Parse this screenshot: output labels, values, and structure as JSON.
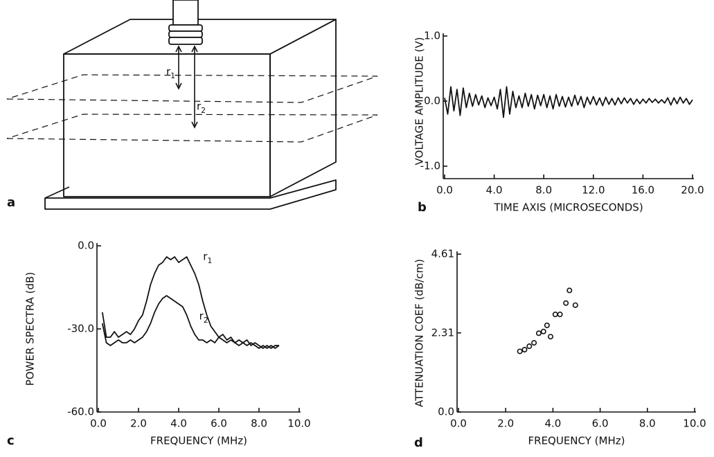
{
  "diagram": {
    "panel_label": "a",
    "arrow_labels": [
      "r1",
      "r2"
    ]
  },
  "chart_data": [
    {
      "type": "line",
      "panel_label": "b",
      "y_label": "VOLTAGE AMPLITUDE (V)",
      "x_label": "TIME AXIS (MICROSECONDS)",
      "color": "#111111",
      "x": [
        0,
        0.25,
        0.5,
        0.75,
        1,
        1.25,
        1.5,
        1.75,
        2,
        2.25,
        2.5,
        2.75,
        3,
        3.25,
        3.5,
        3.75,
        4,
        4.25,
        4.5,
        4.75,
        5,
        5.25,
        5.5,
        5.75,
        6,
        6.25,
        6.5,
        6.75,
        7,
        7.25,
        7.5,
        7.75,
        8,
        8.25,
        8.5,
        8.75,
        9,
        9.25,
        9.5,
        9.75,
        10,
        10.25,
        10.5,
        10.75,
        11,
        11.25,
        11.5,
        11.75,
        12,
        12.25,
        12.5,
        12.75,
        13,
        13.25,
        13.5,
        13.75,
        14,
        14.25,
        14.5,
        14.75,
        15,
        15.25,
        15.5,
        15.75,
        16,
        16.25,
        16.5,
        16.75,
        17,
        17.25,
        17.5,
        17.75,
        18,
        18.25,
        18.5,
        18.75,
        19,
        19.25,
        19.5,
        19.75,
        20
      ],
      "values": [
        0.05,
        -0.2,
        0.22,
        -0.15,
        0.18,
        -0.22,
        0.2,
        -0.1,
        0.12,
        -0.08,
        0.1,
        -0.06,
        0.08,
        -0.1,
        0.05,
        -0.07,
        0.06,
        -0.12,
        0.18,
        -0.25,
        0.22,
        -0.2,
        0.15,
        -0.1,
        0.08,
        -0.1,
        0.12,
        -0.08,
        0.1,
        -0.12,
        0.09,
        -0.07,
        0.1,
        -0.1,
        0.08,
        -0.12,
        0.1,
        -0.08,
        0.07,
        -0.09,
        0.06,
        -0.08,
        0.09,
        -0.06,
        0.07,
        -0.1,
        0.06,
        -0.05,
        0.07,
        -0.06,
        0.05,
        -0.07,
        0.06,
        -0.05,
        0.04,
        -0.06,
        0.05,
        -0.04,
        0.05,
        -0.03,
        0.04,
        -0.05,
        0.03,
        -0.04,
        0.03,
        -0.03,
        0.04,
        -0.02,
        0.03,
        -0.03,
        0.02,
        -0.03,
        0.05,
        -0.06,
        0.05,
        -0.04,
        0.06,
        -0.03,
        0.04,
        -0.05,
        0.02
      ],
      "xlim": [
        0,
        20
      ],
      "ylim": [
        -1,
        1
      ],
      "xticks": [
        {
          "value": 0,
          "label": "0.0"
        },
        {
          "value": 4,
          "label": "4.0"
        },
        {
          "value": 8,
          "label": "8.0"
        },
        {
          "value": 12,
          "label": "12.0"
        },
        {
          "value": 16,
          "label": "16.0"
        },
        {
          "value": 20,
          "label": "20.0"
        }
      ],
      "yticks": [
        {
          "value": -1,
          "label": "-1.0"
        },
        {
          "value": 0,
          "label": "0.0"
        },
        {
          "value": 1,
          "label": "1.0"
        }
      ]
    },
    {
      "type": "line",
      "panel_label": "c",
      "y_label": "POWER SPECTRA (dB)",
      "x_label": "FREQUENCY (MHz)",
      "x": [
        0.2,
        0.4,
        0.6,
        0.8,
        1.0,
        1.2,
        1.4,
        1.6,
        1.8,
        2.0,
        2.2,
        2.4,
        2.6,
        2.8,
        3.0,
        3.2,
        3.4,
        3.6,
        3.8,
        4.0,
        4.2,
        4.4,
        4.6,
        4.8,
        5.0,
        5.2,
        5.4,
        5.6,
        5.8,
        6.0,
        6.2,
        6.4,
        6.6,
        6.8,
        7.0,
        7.2,
        7.4,
        7.6,
        7.8,
        8.0,
        8.2,
        8.4,
        8.6,
        8.8,
        9.0
      ],
      "series": [
        {
          "name": "r1",
          "color": "#111111",
          "values": [
            -24,
            -33,
            -33,
            -31,
            -33,
            -32,
            -31,
            -32,
            -30,
            -27,
            -25,
            -20,
            -14,
            -10,
            -7,
            -6,
            -4,
            -5,
            -4,
            -6,
            -5,
            -4,
            -7,
            -10,
            -14,
            -20,
            -25,
            -29,
            -31,
            -33,
            -32,
            -34,
            -33,
            -35,
            -34,
            -35,
            -34,
            -36,
            -35,
            -36,
            -37,
            -36,
            -37,
            -36,
            -36
          ]
        },
        {
          "name": "r2",
          "color": "#111111",
          "values": [
            -28,
            -35,
            -36,
            -35,
            -34,
            -35,
            -35,
            -34,
            -35,
            -34,
            -33,
            -31,
            -28,
            -24,
            -21,
            -19,
            -18,
            -19,
            -20,
            -21,
            -22,
            -25,
            -29,
            -32,
            -34,
            -34,
            -35,
            -34,
            -35,
            -33,
            -34,
            -35,
            -34,
            -35,
            -36,
            -35,
            -36,
            -35,
            -36,
            -37,
            -36,
            -37,
            -36,
            -37,
            -36
          ]
        }
      ],
      "xlim": [
        0,
        10
      ],
      "ylim": [
        -60,
        0
      ],
      "xticks": [
        {
          "value": 0,
          "label": "0.0"
        },
        {
          "value": 2,
          "label": "2.0"
        },
        {
          "value": 4,
          "label": "4.0"
        },
        {
          "value": 6,
          "label": "6.0"
        },
        {
          "value": 8,
          "label": "8.0"
        },
        {
          "value": 10,
          "label": "10.0"
        }
      ],
      "yticks": [
        {
          "value": -60,
          "label": "-60.0"
        },
        {
          "value": -30,
          "label": "-30.0"
        },
        {
          "value": 0,
          "label": "0.0"
        }
      ]
    },
    {
      "type": "scatter",
      "panel_label": "d",
      "y_label": "ATTENUATION COEF (dB/cm)",
      "x_label": "FREQUENCY (MHz)",
      "color": "#111111",
      "x": [
        2.6,
        2.8,
        3.0,
        3.2,
        3.4,
        3.6,
        3.75,
        3.9,
        4.1,
        4.3,
        4.55,
        4.7,
        4.95
      ],
      "values": [
        1.77,
        1.82,
        1.92,
        2.02,
        2.3,
        2.35,
        2.53,
        2.2,
        2.85,
        2.85,
        3.18,
        3.55,
        3.12
      ],
      "xlim": [
        0,
        10
      ],
      "ylim": [
        0,
        4.61
      ],
      "xticks": [
        {
          "value": 0,
          "label": "0.0"
        },
        {
          "value": 2,
          "label": "2.0"
        },
        {
          "value": 4,
          "label": "4.0"
        },
        {
          "value": 6,
          "label": "6.0"
        },
        {
          "value": 8,
          "label": "8.0"
        },
        {
          "value": 10,
          "label": "10.0"
        }
      ],
      "yticks": [
        {
          "value": 0,
          "label": "0.0"
        },
        2.31,
        4.61
      ]
    }
  ]
}
